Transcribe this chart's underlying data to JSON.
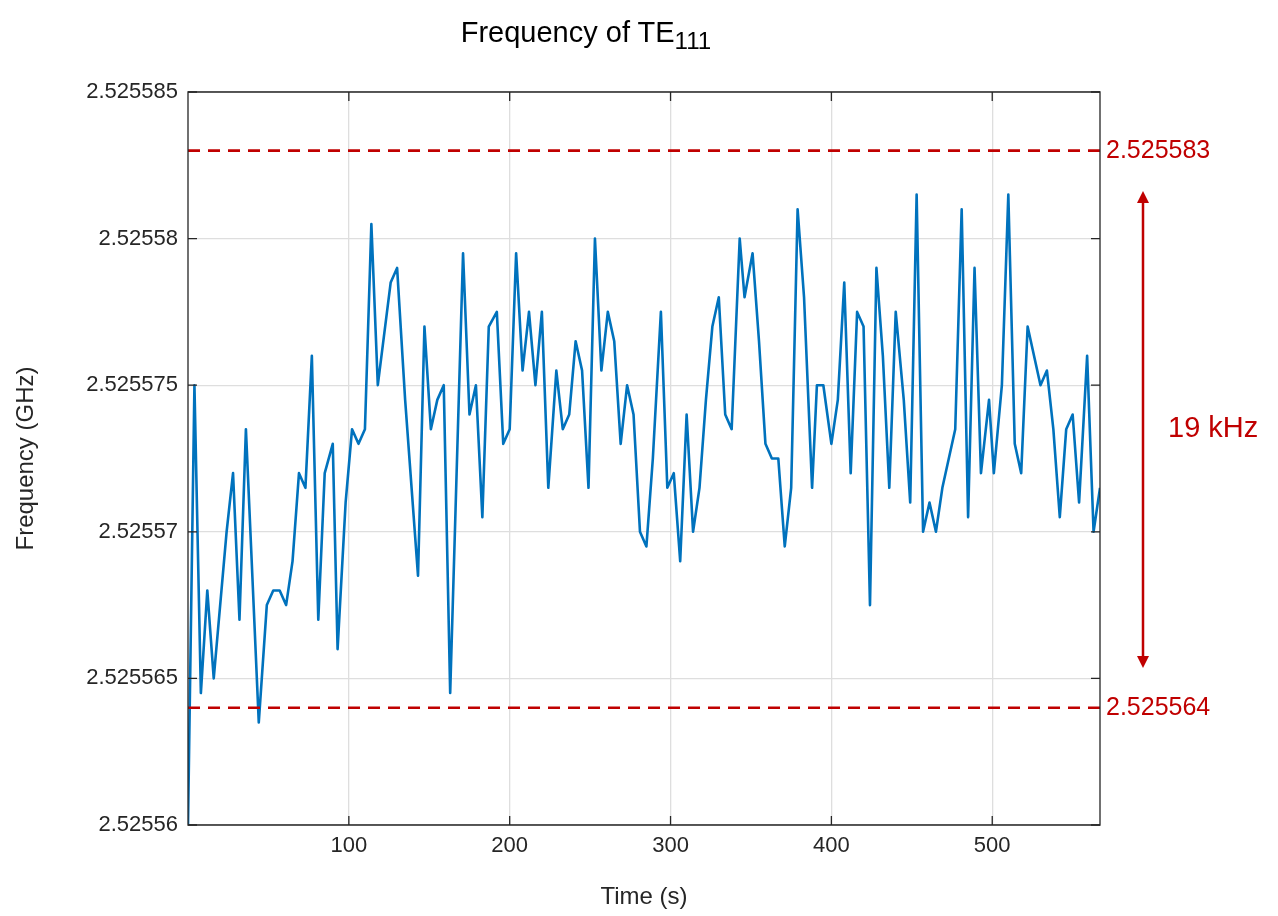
{
  "chart_data": {
    "type": "line",
    "title": "Frequency of TE$_{111}$",
    "xlabel": "Time (s)",
    "ylabel": "Frequency (GHz)",
    "x": [
      0,
      4,
      8,
      12,
      16,
      24,
      28,
      32,
      36,
      44,
      49,
      53,
      57,
      61,
      65,
      69,
      73,
      77,
      81,
      85,
      90,
      93,
      98,
      102,
      106,
      110,
      114,
      118,
      126,
      130,
      135,
      143,
      147,
      151,
      155,
      159,
      163,
      171,
      175,
      179,
      183,
      187,
      192,
      196,
      200,
      204,
      208,
      212,
      216,
      220,
      224,
      229,
      233,
      237,
      241,
      245,
      249,
      253,
      257,
      261,
      265,
      269,
      273,
      277,
      281,
      285,
      289,
      294,
      298,
      302,
      306,
      310,
      314,
      318,
      322,
      326,
      330,
      334,
      338,
      343,
      346,
      351,
      355,
      359,
      363,
      367,
      371,
      375,
      379,
      383,
      388,
      391,
      395,
      400,
      404,
      408,
      412,
      416,
      420,
      424,
      428,
      432,
      436,
      440,
      445,
      449,
      453,
      457,
      461,
      465,
      469,
      477,
      481,
      485,
      489,
      493,
      498,
      501,
      506,
      510,
      514,
      518,
      522,
      530,
      534,
      538,
      542,
      546,
      550,
      554,
      559,
      563,
      567
    ],
    "series": [
      {
        "color": "#0072bd",
        "values": [
          2.52556,
          2.525575,
          2.5255645,
          2.525568,
          2.525565,
          2.52557,
          2.525572,
          2.525567,
          2.5255735,
          2.5255635,
          2.5255675,
          2.525568,
          2.525568,
          2.5255675,
          2.525569,
          2.525572,
          2.5255715,
          2.525576,
          2.525567,
          2.525572,
          2.525573,
          2.525566,
          2.525571,
          2.5255735,
          2.525573,
          2.5255735,
          2.5255805,
          2.525575,
          2.5255785,
          2.525579,
          2.5255745,
          2.5255685,
          2.525577,
          2.5255735,
          2.5255745,
          2.525575,
          2.5255645,
          2.5255795,
          2.525574,
          2.525575,
          2.5255705,
          2.525577,
          2.5255775,
          2.525573,
          2.5255735,
          2.5255795,
          2.5255755,
          2.5255775,
          2.525575,
          2.5255775,
          2.5255715,
          2.5255755,
          2.5255735,
          2.525574,
          2.5255765,
          2.5255755,
          2.5255715,
          2.52558,
          2.5255755,
          2.5255775,
          2.5255765,
          2.525573,
          2.525575,
          2.525574,
          2.52557,
          2.5255695,
          2.5255725,
          2.5255775,
          2.5255715,
          2.525572,
          2.525569,
          2.525574,
          2.52557,
          2.5255715,
          2.5255745,
          2.525577,
          2.525578,
          2.525574,
          2.5255735,
          2.52558,
          2.525578,
          2.5255795,
          2.5255765,
          2.525573,
          2.5255725,
          2.5255725,
          2.5255695,
          2.5255715,
          2.525581,
          2.525578,
          2.5255715,
          2.525575,
          2.525575,
          2.525573,
          2.5255745,
          2.5255785,
          2.525572,
          2.5255775,
          2.525577,
          2.5255675,
          2.525579,
          2.525576,
          2.5255715,
          2.5255775,
          2.5255745,
          2.525571,
          2.5255815,
          2.52557,
          2.525571,
          2.52557,
          2.5255715,
          2.5255735,
          2.525581,
          2.5255705,
          2.525579,
          2.525572,
          2.5255745,
          2.525572,
          2.525575,
          2.5255815,
          2.525573,
          2.525572,
          2.525577,
          2.525575,
          2.5255755,
          2.5255735,
          2.5255705,
          2.5255735,
          2.525574,
          2.525571,
          2.525576,
          2.52557,
          2.5255715
        ]
      }
    ],
    "xlim": [
      0,
      567
    ],
    "xticks": [
      100,
      200,
      300,
      400,
      500
    ],
    "ylim": [
      2.52556,
      2.525585
    ],
    "yticks": [
      2.52556,
      2.525565,
      2.52557,
      2.525575,
      2.52558,
      2.525585
    ],
    "ref_lines": [
      {
        "axis": "y",
        "value": 2.525583,
        "label": "2.525583",
        "color": "#c00000",
        "line_style": "dashed"
      },
      {
        "axis": "y",
        "value": 2.525564,
        "label": "2.525564",
        "color": "#c00000",
        "line_style": "dashed"
      }
    ],
    "annotations": [
      "19 kHz"
    ],
    "grid": true,
    "marker": "none",
    "line_style": "solid"
  }
}
